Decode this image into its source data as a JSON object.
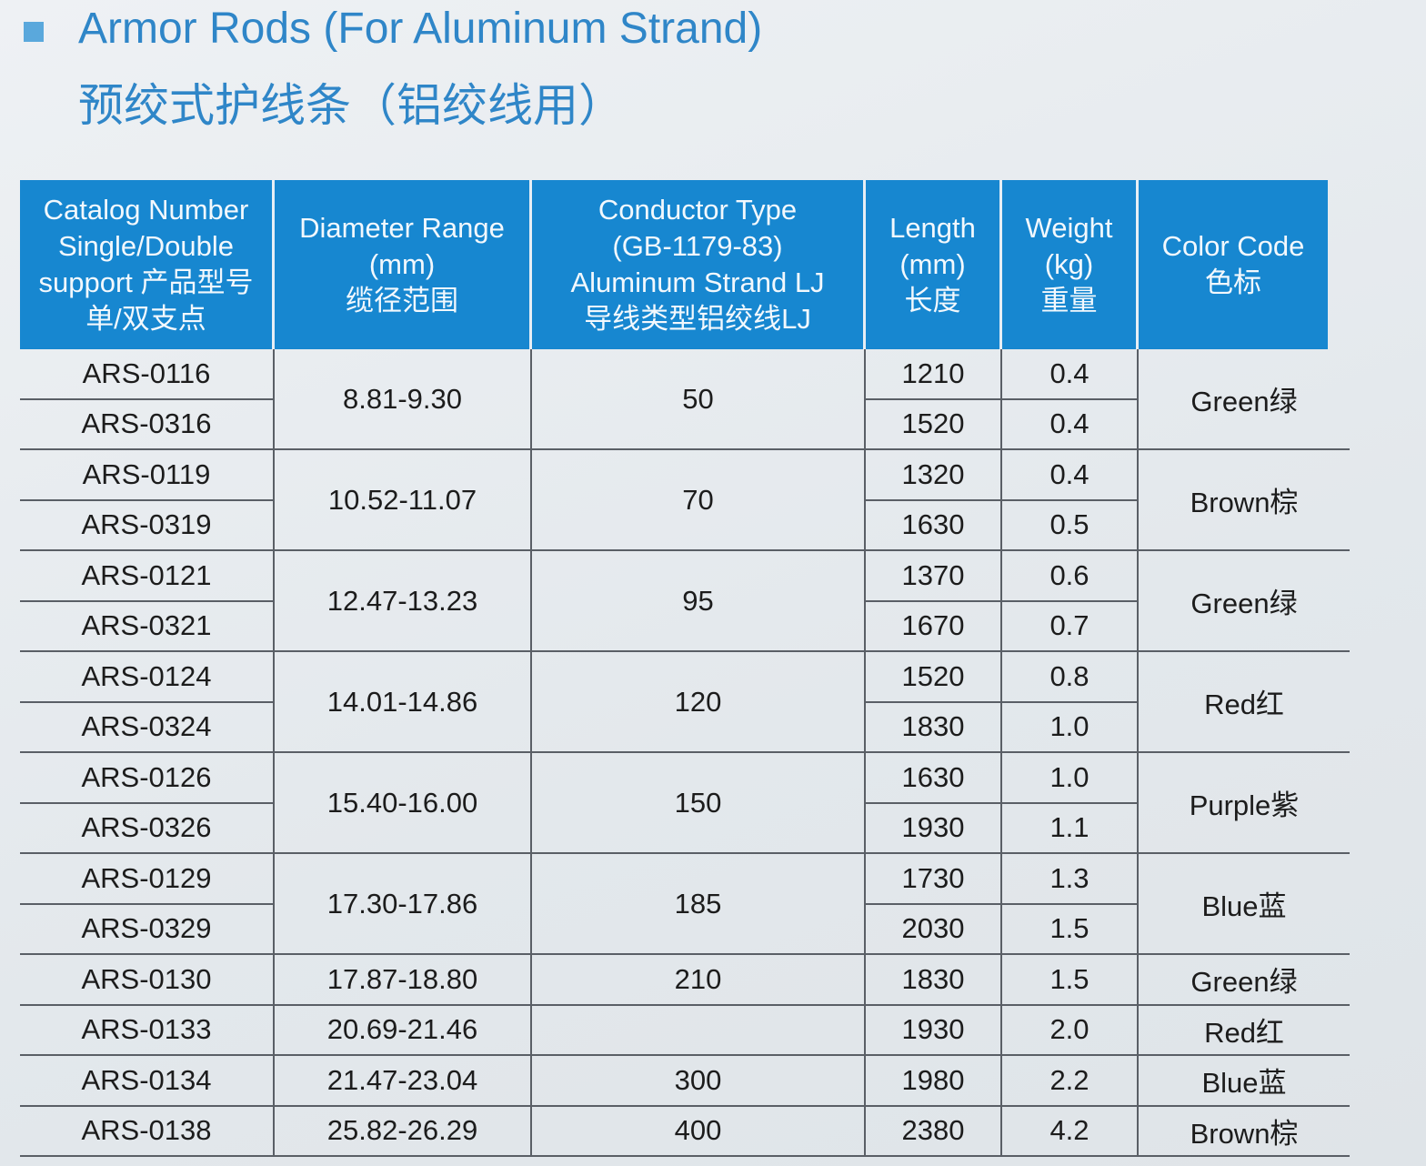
{
  "header": {
    "title": "Armor Rods (For Aluminum Strand)",
    "subtitle": "预绞式护线条（铝绞线用）"
  },
  "table": {
    "columns": [
      [
        "Catalog Number",
        "Single/Double",
        "support 产品型号",
        "单/双支点"
      ],
      [
        "Diameter Range",
        "(mm)",
        "缆径范围"
      ],
      [
        "Conductor Type",
        "(GB-1179-83)",
        "Aluminum Strand LJ",
        "导线类型铝绞线LJ"
      ],
      [
        "Length",
        "(mm)",
        "长度"
      ],
      [
        "Weight",
        "(kg)",
        "重量"
      ],
      [
        "Color Code",
        "色标"
      ]
    ],
    "groups": [
      {
        "diameter": "8.81-9.30",
        "conductor": "50",
        "color": "Green绿",
        "items": [
          {
            "catalog": "ARS-0116",
            "length": "1210",
            "weight": "0.4"
          },
          {
            "catalog": "ARS-0316",
            "length": "1520",
            "weight": "0.4"
          }
        ]
      },
      {
        "diameter": "10.52-11.07",
        "conductor": "70",
        "color": "Brown棕",
        "items": [
          {
            "catalog": "ARS-0119",
            "length": "1320",
            "weight": "0.4"
          },
          {
            "catalog": "ARS-0319",
            "length": "1630",
            "weight": "0.5"
          }
        ]
      },
      {
        "diameter": "12.47-13.23",
        "conductor": "95",
        "color": "Green绿",
        "items": [
          {
            "catalog": "ARS-0121",
            "length": "1370",
            "weight": "0.6"
          },
          {
            "catalog": "ARS-0321",
            "length": "1670",
            "weight": "0.7"
          }
        ]
      },
      {
        "diameter": "14.01-14.86",
        "conductor": "120",
        "color": "Red红",
        "items": [
          {
            "catalog": "ARS-0124",
            "length": "1520",
            "weight": "0.8"
          },
          {
            "catalog": "ARS-0324",
            "length": "1830",
            "weight": "1.0"
          }
        ]
      },
      {
        "diameter": "15.40-16.00",
        "conductor": "150",
        "color": "Purple紫",
        "items": [
          {
            "catalog": "ARS-0126",
            "length": "1630",
            "weight": "1.0"
          },
          {
            "catalog": "ARS-0326",
            "length": "1930",
            "weight": "1.1"
          }
        ]
      },
      {
        "diameter": "17.30-17.86",
        "conductor": "185",
        "color": "Blue蓝",
        "items": [
          {
            "catalog": "ARS-0129",
            "length": "1730",
            "weight": "1.3"
          },
          {
            "catalog": "ARS-0329",
            "length": "2030",
            "weight": "1.5"
          }
        ]
      },
      {
        "diameter": "17.87-18.80",
        "conductor": "210",
        "color": "Green绿",
        "items": [
          {
            "catalog": "ARS-0130",
            "length": "1830",
            "weight": "1.5"
          }
        ]
      },
      {
        "diameter": "20.69-21.46",
        "color": "Red红",
        "items": [
          {
            "catalog": "ARS-0133",
            "length": "1930",
            "weight": "2.0"
          }
        ]
      },
      {
        "diameter": "21.47-23.04",
        "conductor": "300",
        "color": "Blue蓝",
        "items": [
          {
            "catalog": "ARS-0134",
            "length": "1980",
            "weight": "2.2"
          }
        ]
      },
      {
        "diameter": "25.82-26.29",
        "conductor": "400",
        "color": "Brown棕",
        "items": [
          {
            "catalog": "ARS-0138",
            "length": "2380",
            "weight": "4.2"
          }
        ]
      }
    ]
  }
}
